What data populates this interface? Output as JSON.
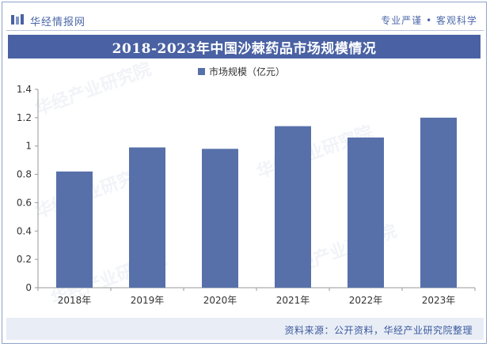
{
  "header": {
    "brand": "华经情报网",
    "slogan": "专业严谨 • 客观科学"
  },
  "colors": {
    "accent": "#4a62a3",
    "bar": "#5770aa",
    "source_text": "#3d5a9e"
  },
  "footer": {
    "source": "资料来源：公开资料，华经产业研究院整理"
  },
  "watermark": {
    "text": "华经产业研究院"
  },
  "chart_data": {
    "type": "bar",
    "title": "2018-2023年中国沙棘药品市场规模情况",
    "categories": [
      "2018年",
      "2019年",
      "2020年",
      "2021年",
      "2022年",
      "2023年"
    ],
    "series": [
      {
        "name": "市场规模（亿元）",
        "values": [
          0.82,
          0.99,
          0.98,
          1.14,
          1.06,
          1.2
        ]
      }
    ],
    "ylim": [
      0,
      1.4
    ],
    "yticks": [
      "0",
      "0.2",
      "0.4",
      "0.6",
      "0.8",
      "1",
      "1.2",
      "1.4"
    ],
    "legend_position": "top-center",
    "grid": false
  }
}
